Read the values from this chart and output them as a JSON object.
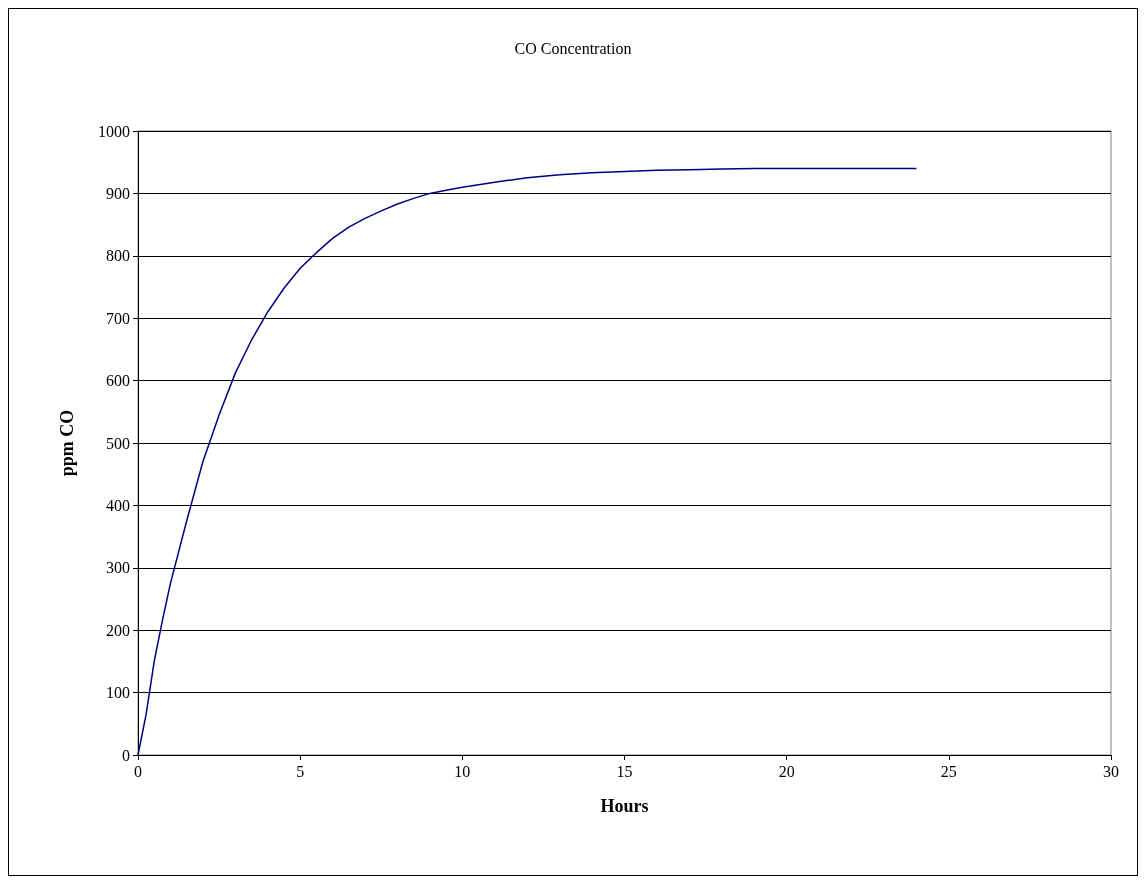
{
  "chart_data": {
    "type": "line",
    "title": "CO Concentration",
    "xlabel": "Hours",
    "ylabel": "ppm CO",
    "xlim": [
      0,
      30
    ],
    "xticks": [
      0,
      5,
      10,
      15,
      20,
      25,
      30
    ],
    "ylim": [
      0,
      1000
    ],
    "yticks": [
      0,
      100,
      200,
      300,
      400,
      500,
      600,
      700,
      800,
      900,
      1000
    ],
    "grid": "y",
    "marker": "none",
    "line_style": "solid",
    "series": [
      {
        "color": "#000080",
        "x": [
          0,
          0.25,
          0.5,
          0.75,
          1,
          1.5,
          2,
          2.5,
          3,
          3.5,
          4,
          4.5,
          5,
          5.5,
          6,
          6.5,
          7,
          7.5,
          8,
          8.5,
          9,
          9.5,
          10,
          11,
          12,
          13,
          14,
          15,
          16,
          17,
          18,
          19,
          20,
          21,
          22,
          23,
          24
        ],
        "values": [
          0,
          65,
          150,
          215,
          275,
          375,
          470,
          545,
          612,
          665,
          710,
          748,
          780,
          805,
          828,
          846,
          860,
          872,
          883,
          892,
          900,
          905,
          910,
          918,
          925,
          930,
          933,
          935,
          937,
          938,
          939,
          940,
          940,
          940,
          940,
          940,
          940
        ]
      }
    ]
  }
}
